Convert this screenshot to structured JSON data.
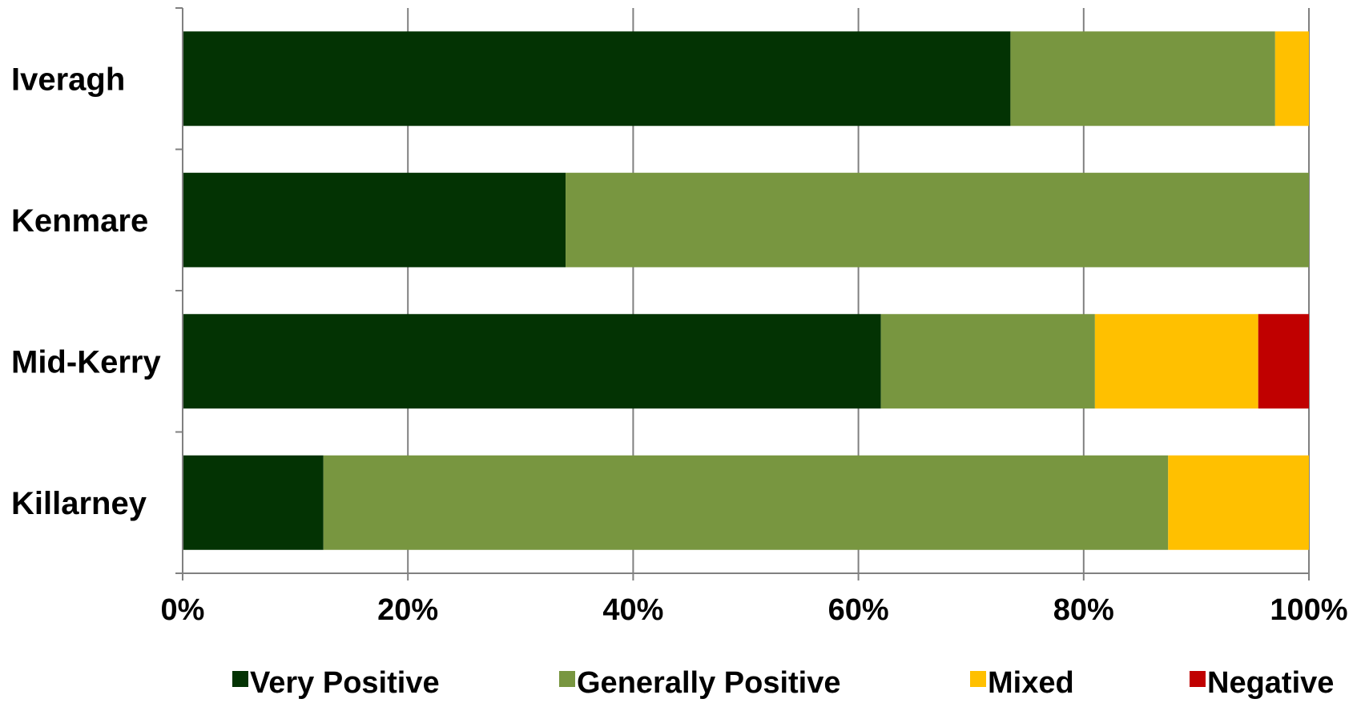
{
  "chart_data": {
    "type": "bar",
    "orientation": "horizontal",
    "stacked": true,
    "categories": [
      "Iveragh",
      "Kenmare",
      "Mid-Kerry",
      "Killarney"
    ],
    "series": [
      {
        "name": "Very Positive",
        "color": "#033303",
        "values": [
          73.5,
          34,
          62,
          12.5
        ]
      },
      {
        "name": "Generally Positive",
        "color": "#789640",
        "values": [
          23.5,
          66,
          19,
          75
        ]
      },
      {
        "name": "Mixed",
        "color": "#ffc000",
        "values": [
          3,
          0,
          14.5,
          12.5
        ]
      },
      {
        "name": "Negative",
        "color": "#c00000",
        "values": [
          0,
          0,
          4.5,
          0
        ]
      }
    ],
    "x_ticks": [
      "0%",
      "20%",
      "40%",
      "60%",
      "80%",
      "100%"
    ],
    "xlim": [
      0,
      100
    ],
    "grid": true,
    "legend_position": "bottom"
  }
}
